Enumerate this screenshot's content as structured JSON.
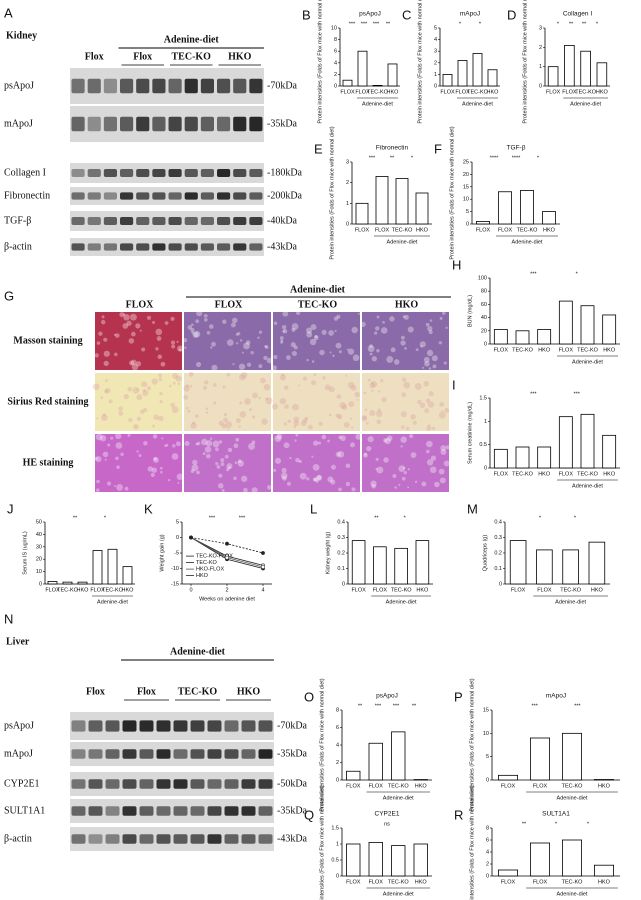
{
  "blots": [
    {
      "letter": "A",
      "tissue": "Kidney",
      "header": "Adenine-diet",
      "groups": [
        "Flox",
        "Flox",
        "TEC-KO",
        "HKO"
      ],
      "rows": [
        {
          "label": "psApoJ",
          "size": "-70kDa"
        },
        {
          "label": "mApoJ",
          "size": "-35kDa"
        },
        {
          "label": "Collagen I",
          "size": "-180kDa"
        },
        {
          "label": "Fibronectin",
          "size": "-200kDa"
        },
        {
          "label": "TGF-β",
          "size": "-40kDa"
        },
        {
          "label": "β-actin",
          "size": "-43kDa"
        }
      ]
    },
    {
      "letter": "N",
      "tissue": "Liver",
      "header": "Adenine-diet",
      "groups": [
        "Flox",
        "Flox",
        "TEC-KO",
        "HKO"
      ],
      "rows": [
        {
          "label": "psApoJ",
          "size": "-70kDa"
        },
        {
          "label": "mApoJ",
          "size": "-35kDa"
        },
        {
          "label": "CYP2E1",
          "size": "-50kDa"
        },
        {
          "label": "SULT1A1",
          "size": "-35kDa"
        },
        {
          "label": "β-actin",
          "size": "-43kDa"
        }
      ]
    }
  ],
  "staining": {
    "letter": "G",
    "header": "Adenine-diet",
    "columns": [
      "FLOX",
      "FLOX",
      "TEC-KO",
      "HKO"
    ],
    "rows": [
      "Masson staining",
      "Sirius Red staining",
      "HE staining"
    ]
  },
  "chart_data": [
    {
      "type": "bar",
      "letter": "B",
      "title": "psApoJ",
      "ylabel": "Protein intensities (Folds of Flox mice with normal diet)",
      "categories": [
        "FLOX",
        "FLOX",
        "TEC-KO",
        "HKO"
      ],
      "group_label": "Adenine-diet",
      "values": [
        1,
        6,
        0.1,
        3.8
      ],
      "ylim": [
        0,
        10
      ],
      "yticks": [
        0,
        2,
        4,
        6,
        8,
        10
      ],
      "annotations": [
        "***",
        "***",
        "***",
        "**"
      ]
    },
    {
      "type": "bar",
      "letter": "C",
      "title": "mApoJ",
      "ylabel": "Protein intensities (Folds of Flox mice with normal diet)",
      "categories": [
        "FLOX",
        "FLOX",
        "TEC-KO",
        "HKO"
      ],
      "group_label": "Adenine-diet",
      "values": [
        1,
        2.2,
        2.8,
        1.4
      ],
      "ylim": [
        0,
        5
      ],
      "yticks": [
        0,
        1,
        2,
        3,
        4,
        5
      ],
      "annotations": [
        "*",
        "*"
      ]
    },
    {
      "type": "bar",
      "letter": "D",
      "title": "Collagen I",
      "ylabel": "Protein intensities (Folds of Flox mice with normal diet)",
      "categories": [
        "FLOX",
        "FLOX",
        "TEC-KO",
        "HKO"
      ],
      "group_label": "Adenine-diet",
      "values": [
        1,
        2.1,
        1.8,
        1.2
      ],
      "ylim": [
        0,
        3
      ],
      "yticks": [
        0,
        1,
        2,
        3
      ],
      "annotations": [
        "*",
        "**",
        "**",
        "*"
      ]
    },
    {
      "type": "bar",
      "letter": "E",
      "title": "Fibronectin",
      "ylabel": "Protein intensities (Folds of Flox mice with normal diet)",
      "categories": [
        "FLOX",
        "FLOX",
        "TEC-KO",
        "HKO"
      ],
      "group_label": "Adenine-diet",
      "values": [
        1,
        2.3,
        2.2,
        1.5
      ],
      "ylim": [
        0,
        3
      ],
      "yticks": [
        0,
        1,
        2,
        3
      ],
      "annotations": [
        "***",
        "**",
        "*"
      ]
    },
    {
      "type": "bar",
      "letter": "F",
      "title": "TGF-β",
      "ylabel": "Protein intensities (Folds of Flox mice with normal diet)",
      "categories": [
        "FLOX",
        "FLOX",
        "TEC-KO",
        "HKO"
      ],
      "group_label": "Adenine-diet",
      "values": [
        1,
        13,
        13.5,
        5
      ],
      "ylim": [
        0,
        25
      ],
      "yticks": [
        0,
        5,
        10,
        15,
        20,
        25
      ],
      "annotations": [
        "****",
        "****",
        "*"
      ]
    },
    {
      "type": "bar",
      "letter": "H",
      "ylabel": "BUN (mg/dL)",
      "categories": [
        "FLOX",
        "TEC-KO",
        "HKO",
        "FLOX",
        "TEC-KO",
        "HKO"
      ],
      "group_label": "Adenine-diet",
      "values": [
        22,
        20,
        22,
        65,
        58,
        44
      ],
      "ylim": [
        0,
        100
      ],
      "yticks": [
        0,
        20,
        40,
        60,
        80,
        100
      ],
      "annotations": [
        "***",
        "*"
      ]
    },
    {
      "type": "bar",
      "letter": "I",
      "ylabel": "Serum creatinine (mg/dL)",
      "categories": [
        "FLOX",
        "TEC-KO",
        "HKO",
        "FLOX",
        "TEC-KO",
        "HKO"
      ],
      "group_label": "Adenine-diet",
      "values": [
        0.4,
        0.45,
        0.45,
        1.1,
        1.15,
        0.7
      ],
      "ylim": [
        0,
        1.5
      ],
      "yticks": [
        0,
        0.5,
        1,
        1.5
      ],
      "annotations": [
        "***",
        "***"
      ]
    },
    {
      "type": "bar",
      "letter": "J",
      "ylabel": "Serum IS (ug/mL)",
      "categories": [
        "FLOX",
        "TEC-KO",
        "HKO",
        "FLOX",
        "TEC-KO",
        "HKO"
      ],
      "group_label": "Adenine-diet",
      "values": [
        2,
        1.5,
        1.5,
        27,
        28,
        14
      ],
      "ylim": [
        0,
        50
      ],
      "yticks": [
        0,
        10,
        20,
        30,
        40,
        50
      ],
      "annotations": [
        "**",
        "*"
      ]
    },
    {
      "type": "line",
      "letter": "K",
      "ylabel": "Weight gain (g)",
      "xlabel": "Weeks on adenine diet",
      "x": [
        0,
        2,
        4
      ],
      "xlim": [
        -0.5,
        4.5
      ],
      "xticks": [
        0,
        2,
        4
      ],
      "ylim": [
        -15,
        5
      ],
      "yticks": [
        -15,
        -10,
        -5,
        0,
        5
      ],
      "annotations": [
        "***",
        "***"
      ],
      "series": [
        {
          "name": "TEC-KO-FLOX",
          "color": "#222222",
          "values": [
            0,
            -6,
            -9
          ]
        },
        {
          "name": "TEC-KO",
          "color": "#222222",
          "values": [
            0,
            -7,
            -10
          ]
        },
        {
          "name": "HKO-FLOX",
          "color": "#555555",
          "values": [
            0,
            -6.5,
            -9.5
          ]
        },
        {
          "name": "HKO",
          "color": "#222222",
          "values": [
            0,
            -2,
            -5
          ]
        }
      ]
    },
    {
      "type": "bar",
      "letter": "L",
      "ylabel": "Kidney weight (g)",
      "categories": [
        "FLOX",
        "FLOX",
        "TEC-KO",
        "HKO"
      ],
      "group_label": "Adenine-diet",
      "values": [
        0.28,
        0.24,
        0.23,
        0.28
      ],
      "ylim": [
        0,
        0.4
      ],
      "yticks": [
        0,
        0.1,
        0.2,
        0.3,
        0.4
      ],
      "annotations": [
        "**",
        "*"
      ]
    },
    {
      "type": "bar",
      "letter": "M",
      "ylabel": "Quadriceps (g)",
      "categories": [
        "FLOX",
        "FLOX",
        "TEC-KO",
        "HKO"
      ],
      "group_label": "Adenine-diet",
      "values": [
        0.28,
        0.22,
        0.22,
        0.27
      ],
      "ylim": [
        0,
        0.4
      ],
      "yticks": [
        0,
        0.1,
        0.2,
        0.3,
        0.4
      ],
      "annotations": [
        "*",
        "*"
      ]
    },
    {
      "type": "bar",
      "letter": "O",
      "title": "psApoJ",
      "ylabel": "Protein intensities (Folds of Flox mice with normal diet)",
      "categories": [
        "FLOX",
        "FLOX",
        "TEC-KO",
        "HKO"
      ],
      "group_label": "Adenine-diet",
      "values": [
        1,
        4.2,
        5.5,
        0.05
      ],
      "ylim": [
        0,
        8
      ],
      "yticks": [
        0,
        2,
        4,
        6,
        8
      ],
      "annotations": [
        "**",
        "***",
        "***",
        "**"
      ]
    },
    {
      "type": "bar",
      "letter": "P",
      "title": "mApoJ",
      "ylabel": "Protein intensities (Folds of Flox mice with normal diet)",
      "categories": [
        "FLOX",
        "FLOX",
        "TEC-KO",
        "HKO"
      ],
      "group_label": "Adenine-diet",
      "values": [
        1,
        9,
        10,
        0.1
      ],
      "ylim": [
        0,
        15
      ],
      "yticks": [
        0,
        5,
        10,
        15
      ],
      "annotations": [
        "***",
        "***"
      ]
    },
    {
      "type": "bar",
      "letter": "Q",
      "title": "CYP2E1",
      "ylabel": "Protein intensities (Folds of Flox mice with normal diet)",
      "categories": [
        "FLOX",
        "FLOX",
        "TEC-KO",
        "HKO"
      ],
      "group_label": "Adenine-diet",
      "values": [
        1,
        1.05,
        0.95,
        1
      ],
      "ylim": [
        0,
        1.5
      ],
      "yticks": [
        0,
        0.5,
        1,
        1.5
      ],
      "annotations": [
        "ns"
      ]
    },
    {
      "type": "bar",
      "letter": "R",
      "title": "SULT1A1",
      "ylabel": "Protein intensities (Folds of Flox mice with normal diet)",
      "categories": [
        "FLOX",
        "FLOX",
        "TEC-KO",
        "HKO"
      ],
      "group_label": "Adenine-diet",
      "values": [
        1,
        5.5,
        6,
        1.8
      ],
      "ylim": [
        0,
        8
      ],
      "yticks": [
        0,
        2,
        4,
        6,
        8
      ],
      "annotations": [
        "**",
        "*",
        "*"
      ]
    }
  ]
}
